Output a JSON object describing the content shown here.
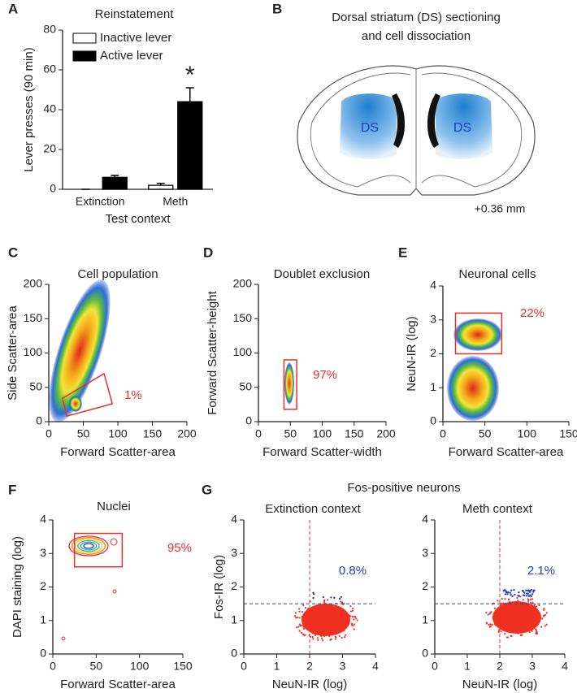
{
  "diagram": {
    "label": "B",
    "title": [
      "Dorsal striatum (DS) sectioning",
      "and cell dissociation"
    ],
    "regions": [
      "DS",
      "DS"
    ],
    "coordinate": "+0.36 mm"
  },
  "panel_G": {
    "label": "G",
    "title": "Fos-positive neurons"
  },
  "chart_data": [
    {
      "type": "bar",
      "panel": "A",
      "title": "Reinstatement",
      "xlabel": "Test context",
      "ylabel": "Lever presses (90 min)",
      "categories": [
        "Extinction",
        "Meth"
      ],
      "series": [
        {
          "name": "Inactive lever",
          "color": "#ffffff",
          "values": [
            0,
            2
          ],
          "errors": [
            0,
            1
          ]
        },
        {
          "name": "Active lever",
          "color": "#000000",
          "values": [
            6,
            44
          ],
          "errors": [
            1,
            7
          ]
        }
      ],
      "ylim": [
        0,
        80
      ],
      "yticks": [
        0,
        20,
        40,
        60,
        80
      ],
      "annotation": "*"
    },
    {
      "type": "density",
      "panel": "C",
      "title": "Cell population",
      "xlabel": "Forward Scatter-area",
      "ylabel": "Side Scatter-area",
      "xlim": [
        0,
        200
      ],
      "ylim": [
        0,
        200
      ],
      "xticks": [
        0,
        50,
        100,
        150,
        200
      ],
      "yticks": [
        0,
        50,
        100,
        150,
        200
      ],
      "gate": {
        "x": [
          26,
          20,
          80,
          92
        ],
        "y": [
          8,
          34,
          70,
          26
        ],
        "label": "1%",
        "color": "#e8302a"
      }
    },
    {
      "type": "density",
      "panel": "D",
      "title": "Doublet exclusion",
      "xlabel": "Forward Scatter-width",
      "ylabel": "Forward Scatter-height",
      "xlim": [
        0,
        200
      ],
      "ylim": [
        0,
        200
      ],
      "xticks": [
        0,
        50,
        100,
        150,
        200
      ],
      "yticks": [
        0,
        50,
        100,
        150,
        200
      ],
      "gate": {
        "x": [
          40,
          40,
          60,
          60
        ],
        "y": [
          18,
          90,
          90,
          18
        ],
        "label": "97%",
        "color": "#e8302a"
      }
    },
    {
      "type": "density",
      "panel": "E",
      "title": "Neuronal cells",
      "xlabel": "Forward Scatter-area",
      "ylabel": "NeuN-IR (log)",
      "xlim": [
        0,
        150
      ],
      "ylim": [
        0,
        4
      ],
      "xticks": [
        0,
        50,
        100,
        150
      ],
      "yticks": [
        0,
        1,
        2,
        3,
        4
      ],
      "gate": {
        "x": [
          15,
          15,
          70,
          70
        ],
        "y": [
          2,
          3.2,
          3.2,
          2
        ],
        "label": "22%",
        "color": "#e8302a"
      }
    },
    {
      "type": "contour",
      "panel": "F",
      "title": "Nuclei",
      "xlabel": "Forward Scatter-area",
      "ylabel": "DAPI staining (log)",
      "xlim": [
        0,
        150
      ],
      "ylim": [
        0,
        4
      ],
      "xticks": [
        0,
        50,
        100,
        150
      ],
      "yticks": [
        0,
        1,
        2,
        3,
        4
      ],
      "gate": {
        "x": [
          25,
          25,
          80,
          80
        ],
        "y": [
          2.6,
          3.6,
          3.6,
          2.6
        ],
        "label": "95%",
        "color": "#e8302a"
      }
    },
    {
      "type": "quadrant",
      "title": "Extinction context",
      "xlabel": "NeuN-IR (log)",
      "ylabel": "Fos-IR (log)",
      "xlim": [
        0,
        4
      ],
      "ylim": [
        0,
        4
      ],
      "xticks": [
        0,
        1,
        2,
        3,
        4
      ],
      "yticks": [
        0,
        1,
        2,
        3,
        4
      ],
      "vline": 2,
      "hline": 1.5,
      "vline_color": "#e8302a",
      "hline_color": "#1f3fbf",
      "quadrant_label": "0.8%",
      "label_color": "#1f3fbf"
    },
    {
      "type": "quadrant",
      "title": "Meth context",
      "xlabel": "NeuN-IR (log)",
      "xlim": [
        0,
        4
      ],
      "ylim": [
        0,
        4
      ],
      "xticks": [
        0,
        1,
        2,
        3,
        4
      ],
      "yticks": [
        0,
        1,
        2,
        3,
        4
      ],
      "vline": 2,
      "hline": 1.5,
      "vline_color": "#e8302a",
      "hline_color": "#1f3fbf",
      "quadrant_label": "2.1%",
      "label_color": "#1f3fbf"
    }
  ]
}
